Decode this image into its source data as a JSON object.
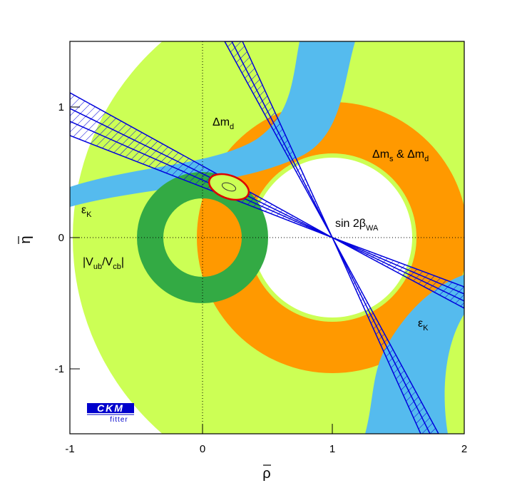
{
  "chart_data": {
    "type": "constraint-plot",
    "xlabel": "ρ",
    "ylabel": "η",
    "xlim": [
      -1,
      2
    ],
    "ylim": [
      -1.5,
      1.5
    ],
    "x_ticks": [
      "-1",
      "0",
      "1",
      "2"
    ],
    "y_ticks": [
      "-1",
      "0",
      "1"
    ],
    "dotted_axes": true,
    "labels": {
      "dmd": {
        "base": "Δm",
        "sub": "d"
      },
      "dms_dmd": {
        "base": "Δm",
        "sub": "s",
        "mid": " & Δm",
        "sub2": "d"
      },
      "epsk_left": {
        "base": "ε",
        "sub": "K"
      },
      "epsk_right": {
        "base": "ε",
        "sub": "K"
      },
      "sin2b": {
        "base": "sin 2β",
        "sub": "WA"
      },
      "vub": {
        "pre": "|V",
        "sub": "ub",
        "mid": "/V",
        "sub2": "cb",
        "post": "|"
      }
    },
    "constraints": {
      "dmd_ring": {
        "center": [
          1,
          0
        ],
        "r_in": 0.62,
        "r_out": 1.98,
        "outer_color": "#ccff55"
      },
      "dms_ring": {
        "center": [
          1,
          0
        ],
        "r_in": 0.62,
        "r_out": 1.03,
        "color": "#ff9900"
      },
      "vub_ring": {
        "center": [
          0,
          0
        ],
        "r_in": 0.3,
        "r_out": 0.5,
        "color": "#33aa44"
      },
      "sin2b_wa": {
        "apex": [
          1,
          0
        ],
        "slopes_inner": [
          -0.44,
          -0.58
        ],
        "slopes_outer": [
          -0.39,
          -0.63
        ],
        "color": "#0000dd"
      },
      "epsk_color": "#55bbee"
    },
    "best_fit": {
      "rho": 0.2,
      "eta": 0.39,
      "color": "#dd0000"
    },
    "logo": {
      "text": "CKM",
      "subtext": "fitter"
    }
  }
}
